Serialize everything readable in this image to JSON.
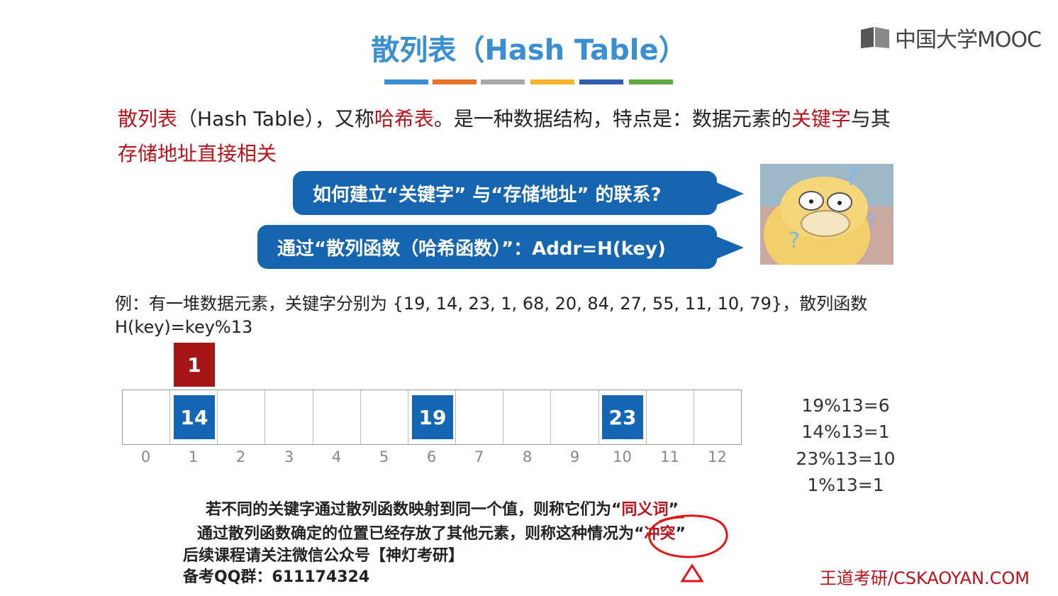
{
  "header": {
    "title": "散列表（Hash Table）",
    "bar_colors": [
      "#3b8ed0",
      "#e8732a",
      "#a8a8a8",
      "#f2b52b",
      "#2f5faa",
      "#62a844"
    ],
    "logo_text": "中国大学MOOC"
  },
  "intro": {
    "term": "散列表",
    "part1": "（Hash Table），又称",
    "alias": "哈希表",
    "part2": "。是一种数据结构，特点是：数据元素的",
    "keyword": "关键字",
    "part3": "与其",
    "line2": "存储地址直接相关"
  },
  "bubbles": {
    "question": "如何建立“关键字” 与“存储地址” 的联系?",
    "answer": "通过“散列函数（哈希函数）”：Addr=H(key)"
  },
  "example": {
    "line1": "例：有一堆数据元素，关键字分别为 {19, 14, 23, 1, 68, 20, 84, 27, 55, 11, 10, 79}，散列函数",
    "line2": "H(key)=key%13"
  },
  "hash_table": {
    "indices": [
      "0",
      "1",
      "2",
      "3",
      "4",
      "5",
      "6",
      "7",
      "8",
      "9",
      "10",
      "11",
      "12"
    ],
    "entries": [
      {
        "index": 1,
        "value": "14"
      },
      {
        "index": 6,
        "value": "19"
      },
      {
        "index": 10,
        "value": "23"
      }
    ],
    "conflict": {
      "index": 1,
      "value": "1"
    }
  },
  "calculations": [
    "19%13=6",
    "14%13=1",
    "23%13=10",
    "1%13=1"
  ],
  "notes": {
    "synonym_pre": "若不同的关键字通过散列函数映射到同一个值，则称它们为“",
    "synonym_word": "同义词",
    "synonym_post": "”",
    "conflict_pre": "通过散列函数确定的位置已经存放了其他元素，则称这种情况为“",
    "conflict_word": "冲突",
    "conflict_post": "”",
    "follow": "后续课程请关注微信公众号【神灯考研】",
    "qq": "备考QQ群：611174324"
  },
  "watermark": "王道考研/CSKAOYAN.COM"
}
